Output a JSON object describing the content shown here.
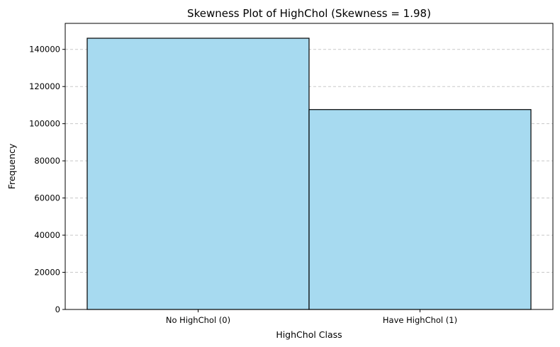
{
  "chart_data": {
    "type": "bar",
    "title": "Skewness Plot of HighChol (Skewness = 1.98)",
    "xlabel": "HighChol Class",
    "ylabel": "Frequency",
    "categories": [
      "No HighChol (0)",
      "Have HighChol (1)"
    ],
    "values": [
      146000,
      107600
    ],
    "ylim": [
      0,
      154000
    ],
    "yticks": [
      0,
      20000,
      40000,
      60000,
      80000,
      100000,
      120000,
      140000
    ],
    "ytick_labels": [
      "0",
      "20000",
      "40000",
      "60000",
      "80000",
      "100000",
      "120000",
      "140000"
    ],
    "grid": "y-dashed",
    "legend": "none",
    "colors": {
      "bar_fill": "#a7daf0",
      "bar_edge": "#000000",
      "grid": "#c8c8c8"
    }
  }
}
